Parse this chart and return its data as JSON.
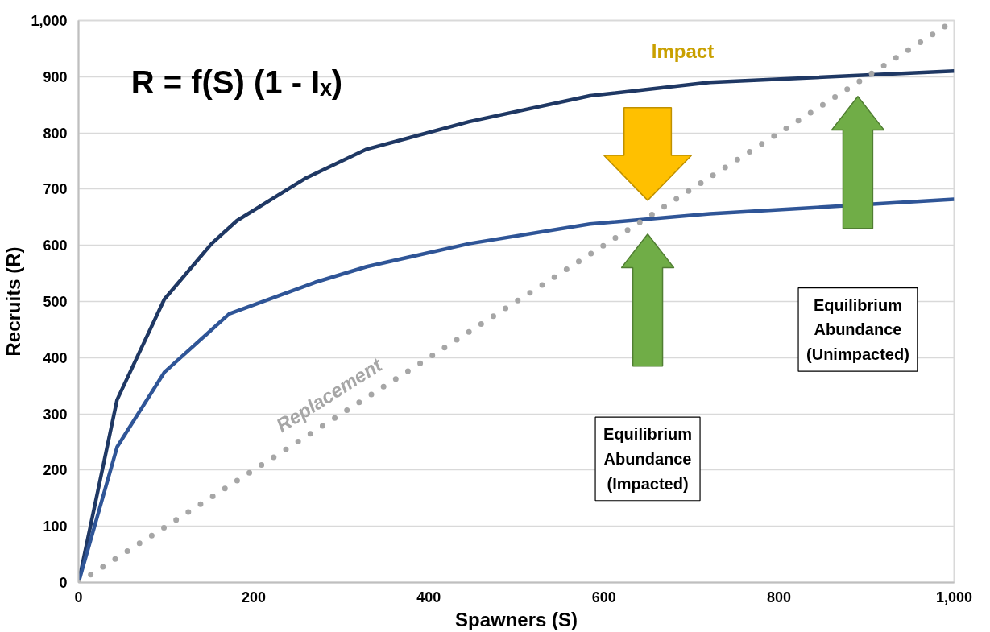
{
  "chart_data": {
    "type": "line",
    "xlabel": "Spawners (S)",
    "ylabel": "Recruits (R)",
    "xlim": [
      0,
      1000
    ],
    "ylim": [
      0,
      1000
    ],
    "xticks": [
      0,
      200,
      400,
      600,
      800,
      {
        "value": 1000,
        "label": "1,000"
      }
    ],
    "yticks": [
      0,
      100,
      200,
      300,
      400,
      500,
      600,
      700,
      800,
      900,
      {
        "value": 1000,
        "label": "1,000"
      }
    ],
    "grid": "y",
    "marker": "none",
    "line_style": "solid",
    "series": [
      {
        "color": "#1f3864",
        "x": [
          0,
          44,
          98,
          152,
          181,
          260,
          329,
          446,
          584,
          721,
          1000
        ],
        "values": [
          0,
          325,
          504,
          603,
          644,
          720,
          771,
          820,
          866,
          890,
          910
        ]
      },
      {
        "color": "#2f5597",
        "x": [
          0,
          44,
          98,
          172,
          270,
          329,
          446,
          584,
          721,
          1000
        ],
        "values": [
          0,
          241,
          374,
          478,
          534,
          562,
          603,
          638,
          656,
          682
        ]
      },
      {
        "name": "Replacement",
        "color": "#a6a6a6",
        "line_style": "dotted",
        "x": [
          0,
          1000
        ],
        "values": [
          0,
          1000
        ]
      }
    ],
    "annotations": [
      "R = f(S) (1 - Iₓ)",
      "Impact",
      "Equilibrium\nAbundance\n(Impacted)",
      "Equilibrium\nAbundance\n(Unimpacted)"
    ]
  }
}
